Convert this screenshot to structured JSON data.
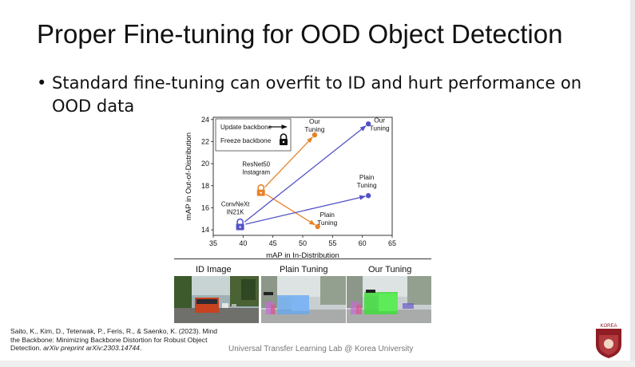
{
  "slide": {
    "title": "Proper Fine-tuning for OOD Object Detection",
    "bullet_marker": "•",
    "bullet": "Standard fine-tuning can overfit to ID and hurt performance on OOD data",
    "footer": "Universal Transfer Learning Lab @ Korea University",
    "logo_text": "KOREA"
  },
  "citation": {
    "text": "Saito, K., Kim, D., Teterwak, P., Feris, R., & Saenko, K. (2023). Mind the Backbone: Minimizing Backbone Distortion for Robust Object Detection.",
    "venue": "arXiv preprint arXiv:2303.14744",
    "end": "."
  },
  "panels": {
    "id_label": "ID Image",
    "plain_label": "Plain Tuning",
    "ours_label": "Our Tuning"
  },
  "colors": {
    "orange": "#e8822a",
    "blue": "#5252c8"
  },
  "chart_data": {
    "type": "scatter",
    "xlabel": "mAP in In-Distribution",
    "ylabel": "mAP in Out-of-Distribution",
    "xlim": [
      35,
      65
    ],
    "ylim": [
      13.5,
      24.2
    ],
    "xticks": [
      35,
      40,
      45,
      50,
      55,
      60,
      65
    ],
    "yticks": [
      14,
      16,
      18,
      20,
      22,
      24
    ],
    "grid": false,
    "legend": {
      "position": "top-left",
      "update_label": "Update backbone",
      "freeze_label": "Freeze backbone"
    },
    "backbones": [
      {
        "name": "ResNet50 Instagram",
        "name_lines": [
          "ResNet50",
          "Instagram"
        ],
        "color": "#e8822a",
        "frozen": [
          43.0,
          17.5
        ],
        "plain_tuning": [
          52.5,
          14.3
        ],
        "our_tuning": [
          52.0,
          22.6
        ]
      },
      {
        "name": "ConvNeXt IN21K",
        "name_lines": [
          "ConvNeXt",
          "IN21K"
        ],
        "color": "#5252c8",
        "frozen": [
          39.5,
          14.4
        ],
        "plain_tuning": [
          61.0,
          17.1
        ],
        "our_tuning": [
          61.0,
          23.6
        ]
      }
    ],
    "point_labels": {
      "our": [
        "Our",
        "Tuning"
      ],
      "plain": [
        "Plain",
        "Tuning"
      ]
    }
  }
}
